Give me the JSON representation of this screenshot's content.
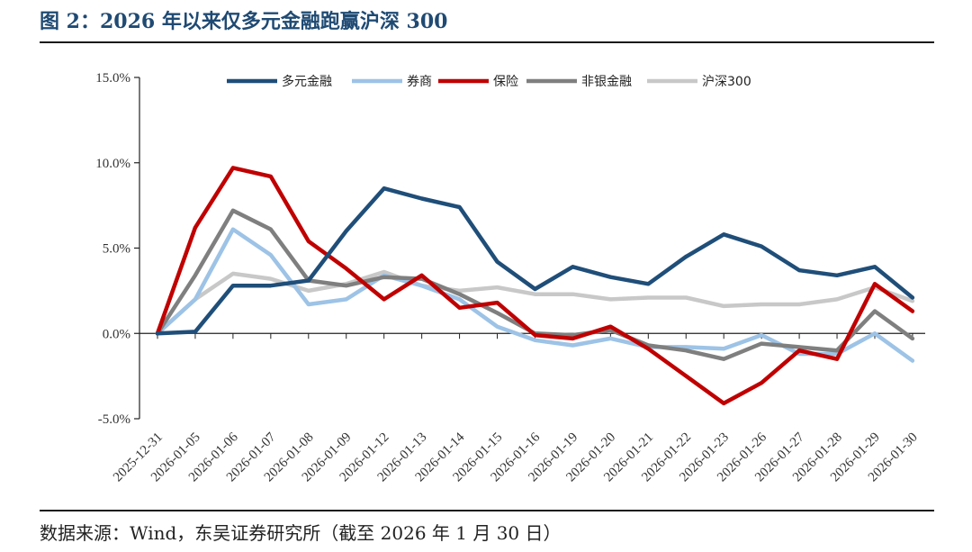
{
  "figure_title": "图 2：2026 年以来仅多元金融跑赢沪深 300",
  "source_note": "数据来源：Wind，东吴证券研究所（截至 2026 年 1 月 30 日）",
  "chart_data": {
    "type": "line",
    "title": "图 2：2026 年以来仅多元金融跑赢沪深 300",
    "xlabel": "",
    "ylabel": "",
    "ylim": [
      -5.0,
      15.0
    ],
    "yticks": [
      -5.0,
      0.0,
      5.0,
      10.0,
      15.0
    ],
    "ytick_labels": [
      "-5.0%",
      "0.0%",
      "5.0%",
      "10.0%",
      "15.0%"
    ],
    "legend_position": "top",
    "grid": false,
    "categories": [
      "2025-12-31",
      "2026-01-05",
      "2026-01-06",
      "2026-01-07",
      "2026-01-08",
      "2026-01-09",
      "2026-01-12",
      "2026-01-13",
      "2026-01-14",
      "2026-01-15",
      "2026-01-16",
      "2026-01-19",
      "2026-01-20",
      "2026-01-21",
      "2026-01-22",
      "2026-01-23",
      "2026-01-26",
      "2026-01-27",
      "2026-01-28",
      "2026-01-29",
      "2026-01-30"
    ],
    "series": [
      {
        "name": "多元金融",
        "color": "#1f4e79",
        "values": [
          0.0,
          0.1,
          2.8,
          2.8,
          3.1,
          6.0,
          8.5,
          7.9,
          7.4,
          4.2,
          2.6,
          3.9,
          3.3,
          2.9,
          4.5,
          5.8,
          5.1,
          3.7,
          3.4,
          3.9,
          2.1
        ]
      },
      {
        "name": "券商",
        "color": "#9dc3e6",
        "values": [
          0.0,
          2.0,
          6.1,
          4.6,
          1.7,
          2.0,
          3.4,
          2.8,
          2.0,
          0.4,
          -0.4,
          -0.7,
          -0.3,
          -0.8,
          -0.8,
          -0.9,
          -0.1,
          -1.2,
          -1.2,
          0.0,
          -1.6
        ]
      },
      {
        "name": "保险",
        "color": "#c00000",
        "values": [
          0.0,
          6.2,
          9.7,
          9.2,
          5.4,
          3.8,
          2.0,
          3.4,
          1.5,
          1.8,
          -0.1,
          -0.3,
          0.4,
          -0.9,
          -2.5,
          -4.1,
          -2.9,
          -1.0,
          -1.5,
          2.9,
          1.3
        ]
      },
      {
        "name": "非银金融",
        "color": "#7f7f7f",
        "values": [
          0.0,
          3.4,
          7.2,
          6.1,
          3.1,
          2.8,
          3.3,
          3.2,
          2.3,
          1.2,
          0.0,
          -0.1,
          0.2,
          -0.7,
          -1.0,
          -1.5,
          -0.6,
          -0.8,
          -1.0,
          1.3,
          -0.3
        ]
      },
      {
        "name": "沪深300",
        "color": "#c8c8c8",
        "values": [
          0.0,
          2.0,
          3.5,
          3.2,
          2.5,
          2.9,
          3.6,
          2.8,
          2.5,
          2.7,
          2.3,
          2.3,
          2.0,
          2.1,
          2.1,
          1.6,
          1.7,
          1.7,
          2.0,
          2.7,
          1.9
        ]
      }
    ]
  }
}
